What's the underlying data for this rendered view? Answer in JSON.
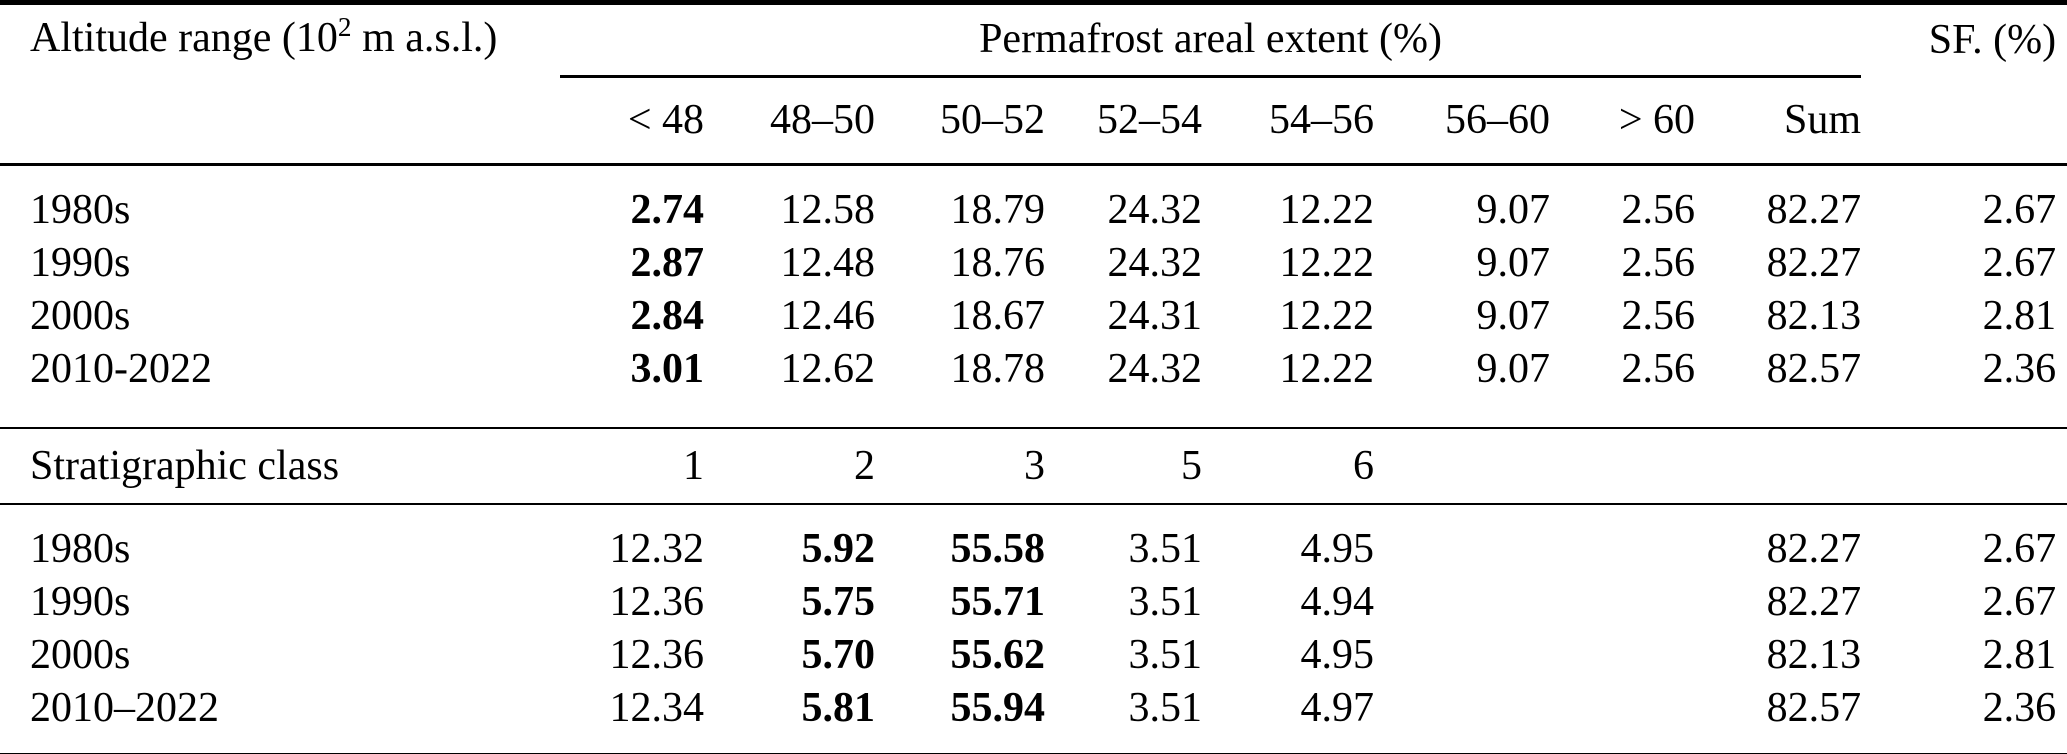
{
  "page": {
    "background_color": "#ffffff",
    "text_color": "#000000"
  },
  "table": {
    "header": {
      "col1_prefix": "Altitude range (10",
      "col1_sup": "2",
      "col1_suffix": " m a.s.l.)",
      "group_label": "Permafrost areal extent (%)",
      "sf_label": "SF. (%)",
      "subcols": [
        "< 48",
        "48–50",
        "50–52",
        "52–54",
        "54–56",
        "56–60",
        "> 60",
        "Sum"
      ]
    },
    "block1": {
      "rows": [
        {
          "label": "1980s",
          "values": [
            "2.74",
            "12.58",
            "18.79",
            "24.32",
            "12.22",
            "9.07",
            "2.56",
            "82.27",
            "2.67"
          ],
          "bold": [
            0
          ]
        },
        {
          "label": "1990s",
          "values": [
            "2.87",
            "12.48",
            "18.76",
            "24.32",
            "12.22",
            "9.07",
            "2.56",
            "82.27",
            "2.67"
          ],
          "bold": [
            0
          ]
        },
        {
          "label": "2000s",
          "values": [
            "2.84",
            "12.46",
            "18.67",
            "24.31",
            "12.22",
            "9.07",
            "2.56",
            "82.13",
            "2.81"
          ],
          "bold": [
            0
          ]
        },
        {
          "label": "2010-2022",
          "values": [
            "3.01",
            "12.62",
            "18.78",
            "24.32",
            "12.22",
            "9.07",
            "2.56",
            "82.57",
            "2.36"
          ],
          "bold": [
            0
          ]
        }
      ]
    },
    "strat": {
      "rows": [
        {
          "label": "Stratigraphic class",
          "values": [
            "1",
            "2",
            "3",
            "5",
            "6",
            "",
            "",
            "",
            ""
          ],
          "bold": []
        }
      ]
    },
    "block2": {
      "rows": [
        {
          "label": "1980s",
          "values": [
            "12.32",
            "5.92",
            "55.58",
            "3.51",
            "4.95",
            "",
            "",
            "82.27",
            "2.67"
          ],
          "bold": [
            1,
            2
          ]
        },
        {
          "label": "1990s",
          "values": [
            "12.36",
            "5.75",
            "55.71",
            "3.51",
            "4.94",
            "",
            "",
            "82.27",
            "2.67"
          ],
          "bold": [
            1,
            2
          ]
        },
        {
          "label": "2000s",
          "values": [
            "12.36",
            "5.70",
            "55.62",
            "3.51",
            "4.95",
            "",
            "",
            "82.13",
            "2.81"
          ],
          "bold": [
            1,
            2
          ]
        },
        {
          "label": "2010–2022",
          "values": [
            "12.34",
            "5.81",
            "55.94",
            "3.51",
            "4.97",
            "",
            "",
            "82.57",
            "2.36"
          ],
          "bold": [
            1,
            2
          ]
        }
      ]
    }
  }
}
